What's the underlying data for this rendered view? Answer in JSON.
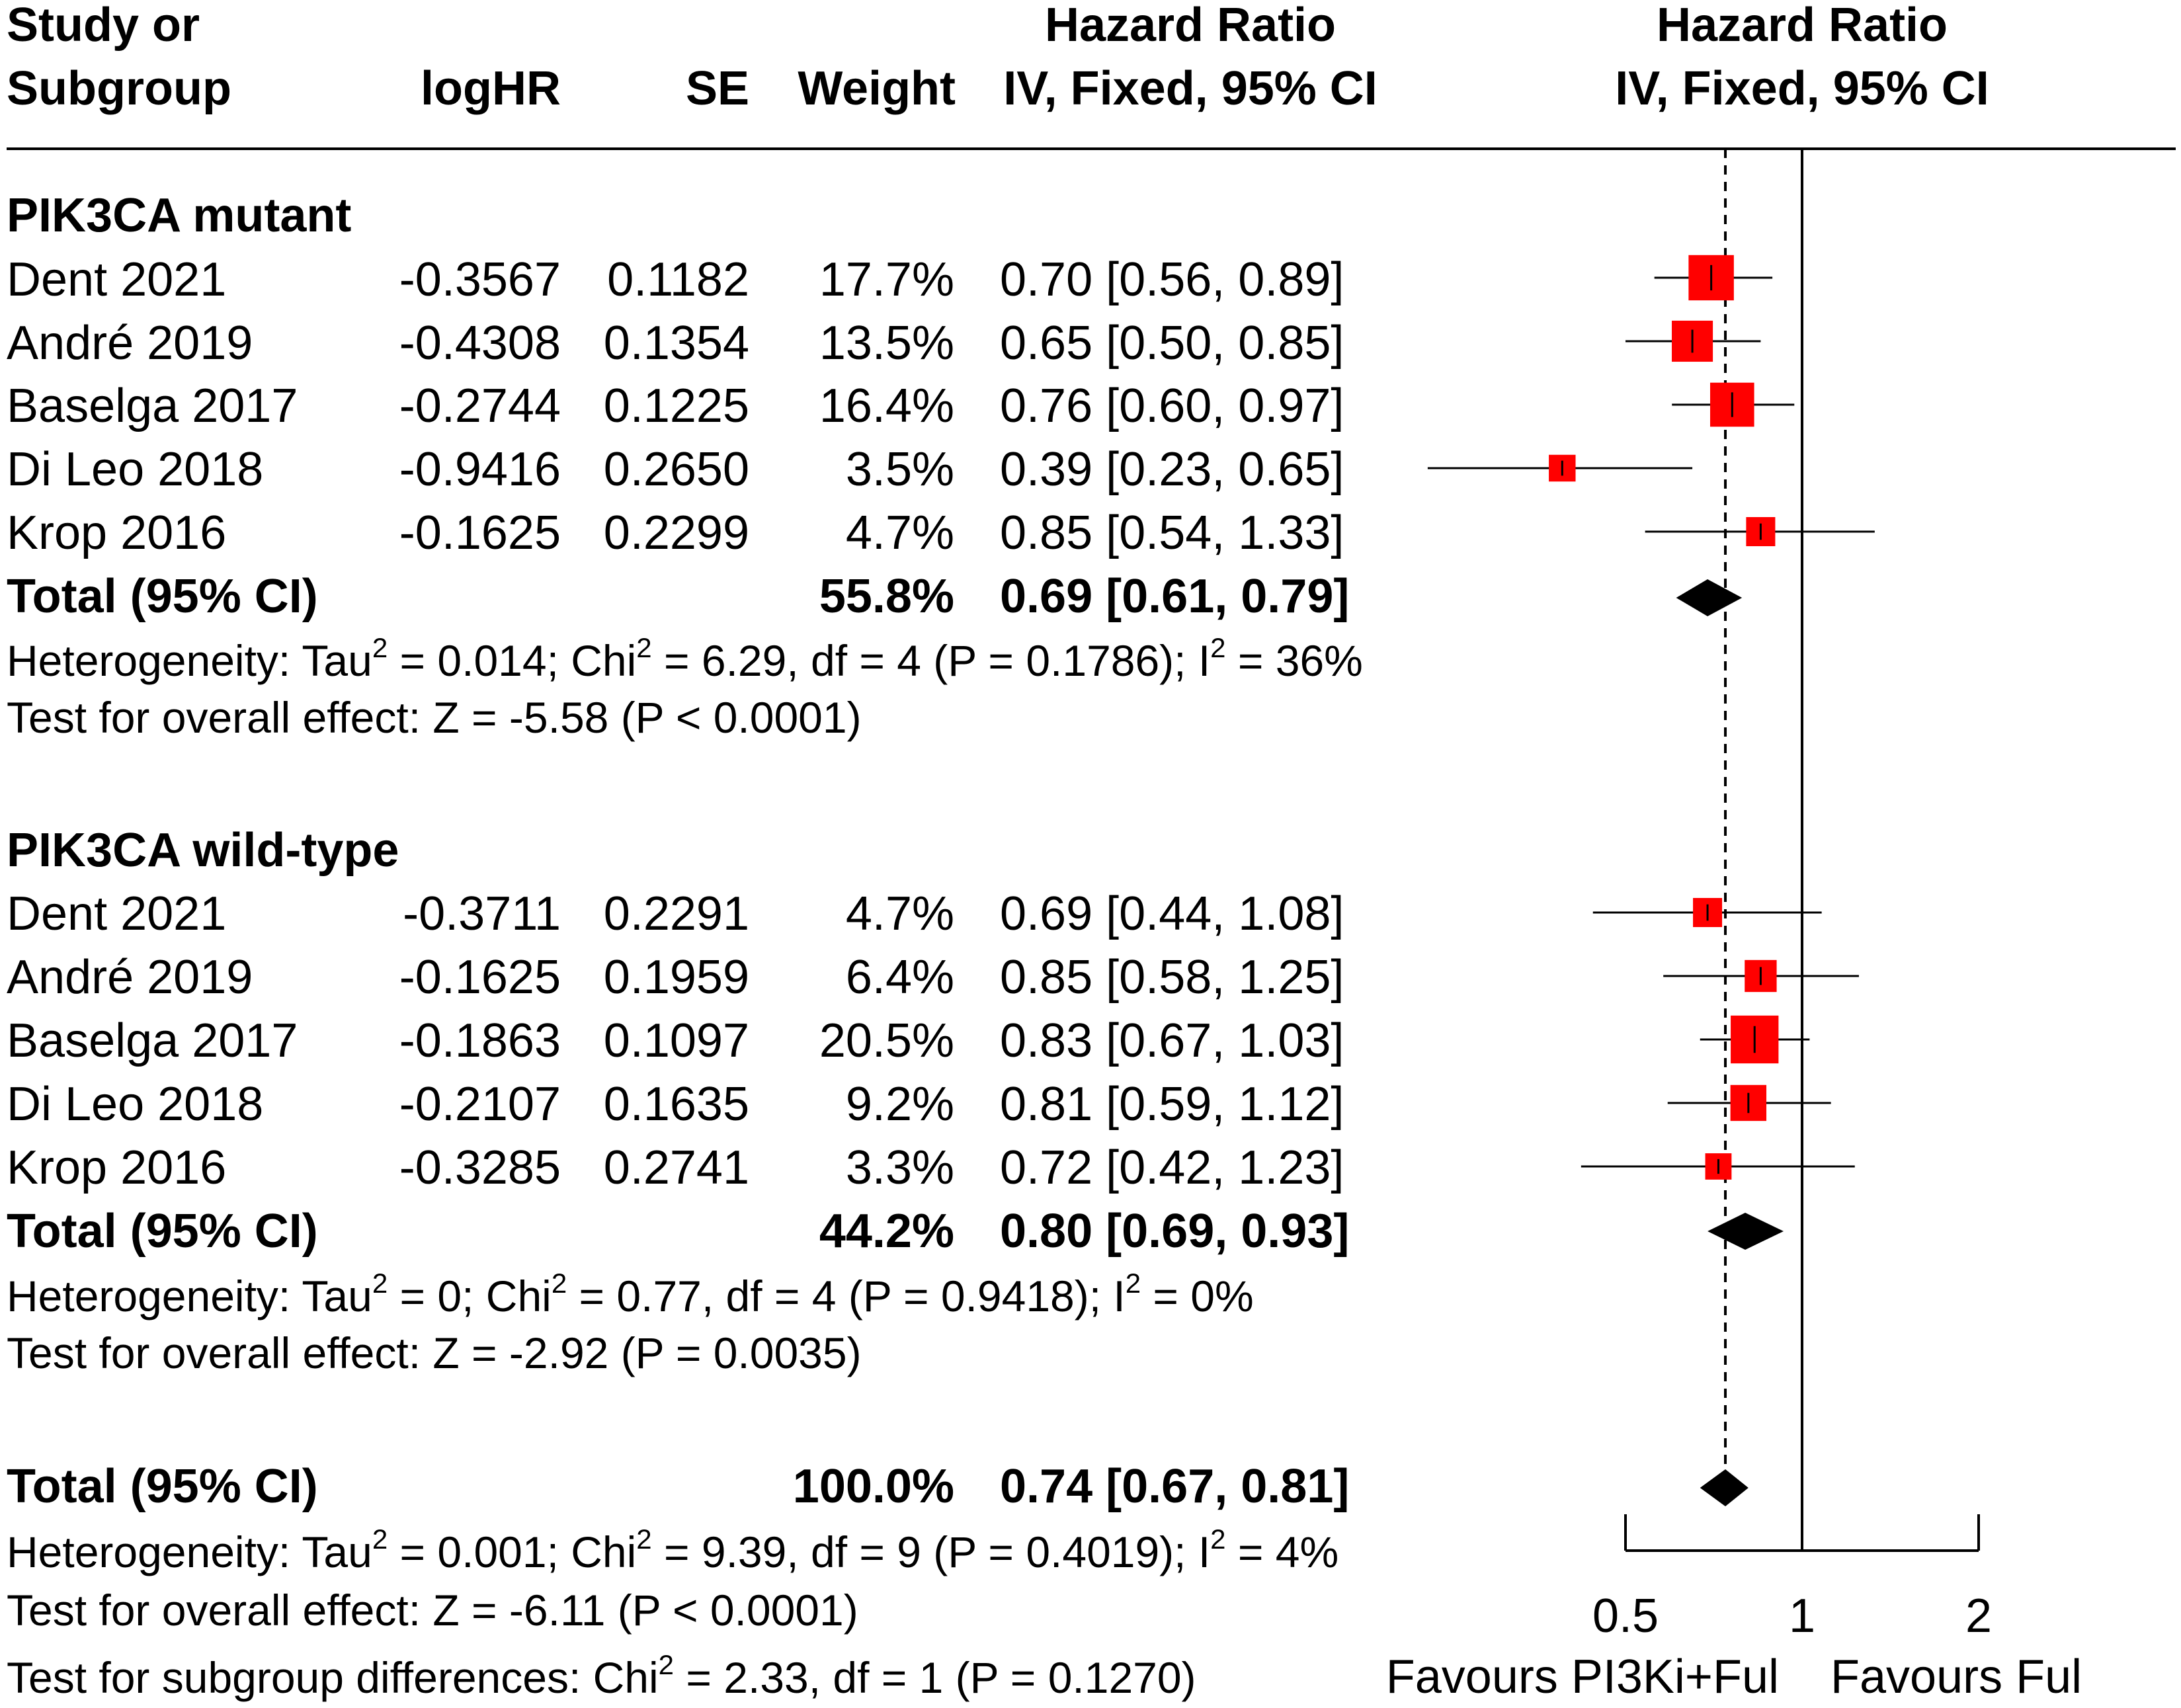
{
  "chart_data": {
    "type": "forest",
    "headers": {
      "study_line1": "Study or",
      "study_line2": "Subgroup",
      "loghr": "logHR",
      "se": "SE",
      "weight": "Weight",
      "hr_text_line1": "Hazard Ratio",
      "hr_text_line2": "IV, Fixed, 95% CI",
      "hr_plot_line1": "Hazard Ratio",
      "hr_plot_line2": "IV, Fixed, 95% CI"
    },
    "subgroups": [
      {
        "name": "PIK3CA mutant",
        "studies": [
          {
            "study": "Dent 2021",
            "loghr": "-0.3567",
            "se": "0.1182",
            "weight": "17.7%",
            "ci_text": "0.70 [0.56, 0.89]",
            "hr": 0.7,
            "lo": 0.56,
            "hi": 0.89,
            "w": 17.7
          },
          {
            "study": "André 2019",
            "loghr": "-0.4308",
            "se": "0.1354",
            "weight": "13.5%",
            "ci_text": "0.65 [0.50, 0.85]",
            "hr": 0.65,
            "lo": 0.5,
            "hi": 0.85,
            "w": 13.5
          },
          {
            "study": "Baselga 2017",
            "loghr": "-0.2744",
            "se": "0.1225",
            "weight": "16.4%",
            "ci_text": "0.76 [0.60, 0.97]",
            "hr": 0.76,
            "lo": 0.6,
            "hi": 0.97,
            "w": 16.4
          },
          {
            "study": "Di Leo 2018",
            "loghr": "-0.9416",
            "se": "0.2650",
            "weight": "3.5%",
            "ci_text": "0.39 [0.23, 0.65]",
            "hr": 0.39,
            "lo": 0.23,
            "hi": 0.65,
            "w": 3.5
          },
          {
            "study": "Krop 2016",
            "loghr": "-0.1625",
            "se": "0.2299",
            "weight": "4.7%",
            "ci_text": "0.85 [0.54, 1.33]",
            "hr": 0.85,
            "lo": 0.54,
            "hi": 1.33,
            "w": 4.7
          }
        ],
        "total": {
          "label": "Total (95% CI)",
          "weight": "55.8%",
          "ci_text": "0.69 [0.61, 0.79]",
          "hr": 0.69,
          "lo": 0.61,
          "hi": 0.79
        },
        "heterogeneity": {
          "prefix": "Heterogeneity: Tau",
          "sup1": "2",
          "mid1": " = 0.014; Chi",
          "sup2": "2",
          "mid2": " = 6.29, df = 4 (P = 0.1786); I",
          "sup3": "2",
          "end": " = 36%"
        },
        "overall": "Test for overall effect: Z = -5.58 (P < 0.0001)"
      },
      {
        "name": "PIK3CA wild-type",
        "studies": [
          {
            "study": "Dent 2021",
            "loghr": "-0.3711",
            "se": "0.2291",
            "weight": "4.7%",
            "ci_text": "0.69 [0.44, 1.08]",
            "hr": 0.69,
            "lo": 0.44,
            "hi": 1.08,
            "w": 4.7
          },
          {
            "study": "André 2019",
            "loghr": "-0.1625",
            "se": "0.1959",
            "weight": "6.4%",
            "ci_text": "0.85 [0.58, 1.25]",
            "hr": 0.85,
            "lo": 0.58,
            "hi": 1.25,
            "w": 6.4
          },
          {
            "study": "Baselga 2017",
            "loghr": "-0.1863",
            "se": "0.1097",
            "weight": "20.5%",
            "ci_text": "0.83 [0.67, 1.03]",
            "hr": 0.83,
            "lo": 0.67,
            "hi": 1.03,
            "w": 20.5
          },
          {
            "study": "Di Leo 2018",
            "loghr": "-0.2107",
            "se": "0.1635",
            "weight": "9.2%",
            "ci_text": "0.81 [0.59, 1.12]",
            "hr": 0.81,
            "lo": 0.59,
            "hi": 1.12,
            "w": 9.2
          },
          {
            "study": "Krop 2016",
            "loghr": "-0.3285",
            "se": "0.2741",
            "weight": "3.3%",
            "ci_text": "0.72 [0.42, 1.23]",
            "hr": 0.72,
            "lo": 0.42,
            "hi": 1.23,
            "w": 3.3
          }
        ],
        "total": {
          "label": "Total (95% CI)",
          "weight": "44.2%",
          "ci_text": "0.80 [0.69, 0.93]",
          "hr": 0.8,
          "lo": 0.69,
          "hi": 0.93
        },
        "heterogeneity": {
          "prefix": "Heterogeneity: Tau",
          "sup1": "2",
          "mid1": " = 0; Chi",
          "sup2": "2",
          "mid2": " = 0.77, df = 4 (P = 0.9418); I",
          "sup3": "2",
          "end": " = 0%"
        },
        "overall": "Test for overall effect: Z = -2.92 (P = 0.0035)"
      }
    ],
    "overall_total": {
      "label": "Total (95% CI)",
      "weight": "100.0%",
      "ci_text": "0.74 [0.67, 0.81]",
      "hr": 0.74,
      "lo": 0.67,
      "hi": 0.81
    },
    "overall_heterogeneity": {
      "prefix": "Heterogeneity: Tau",
      "sup1": "2",
      "mid1": " = 0.001; Chi",
      "sup2": "2",
      "mid2": " = 9.39, df = 9 (P = 0.4019); I",
      "sup3": "2",
      "end": " = 4%"
    },
    "overall_effect": "Test for overall effect: Z = -6.11 (P < 0.0001)",
    "subgroup_diff": {
      "prefix": "Test for subgroup differences: Chi",
      "sup": "2",
      "end": " = 2.33, df = 1 (P = 0.1270)"
    },
    "axis": {
      "scale": "log",
      "range": [
        0.5,
        2
      ],
      "ticks": [
        0.5,
        1,
        2
      ],
      "tick_labels": [
        "0.5",
        "1",
        "2"
      ],
      "null_value": 1
    },
    "favours_left": "Favours PI3Ki+Ful",
    "favours_right": "Favours Ful",
    "colors": {
      "square": "#ff0000",
      "diamond": "#000000",
      "line": "#000000"
    }
  }
}
